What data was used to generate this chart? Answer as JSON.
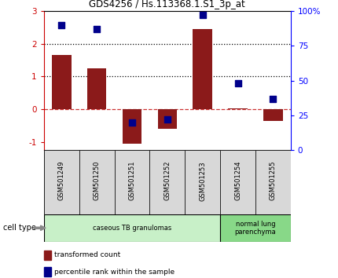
{
  "title": "GDS4256 / Hs.113368.1.S1_3p_at",
  "samples": [
    "GSM501249",
    "GSM501250",
    "GSM501251",
    "GSM501252",
    "GSM501253",
    "GSM501254",
    "GSM501255"
  ],
  "transformed_count": [
    1.65,
    1.25,
    -1.05,
    -0.6,
    2.45,
    0.02,
    -0.35
  ],
  "percentile_rank": [
    90,
    87,
    20,
    22,
    97,
    48,
    37
  ],
  "bar_color": "#8B1A1A",
  "dot_color": "#00008B",
  "left_ylim": [
    -1.25,
    3.0
  ],
  "left_yticks": [
    -1,
    0,
    1,
    2,
    3
  ],
  "right_ylim": [
    0,
    100
  ],
  "right_yticks": [
    0,
    25,
    50,
    75,
    100
  ],
  "right_yticklabels": [
    "0",
    "25",
    "50",
    "75",
    "100%"
  ],
  "hlines": [
    0,
    1,
    2
  ],
  "hline_styles": [
    "--",
    ":",
    ":"
  ],
  "hline_colors": [
    "#CC3333",
    "black",
    "black"
  ],
  "cell_type_groups": [
    {
      "label": "caseous TB granulomas",
      "start": 0,
      "end": 5,
      "color": "#c8f0c8"
    },
    {
      "label": "normal lung\nparenchyma",
      "start": 5,
      "end": 7,
      "color": "#88d888"
    }
  ],
  "cell_type_label": "cell type",
  "legend_items": [
    {
      "color": "#8B1A1A",
      "label": "transformed count"
    },
    {
      "color": "#00008B",
      "label": "percentile rank within the sample"
    }
  ],
  "bar_width": 0.55,
  "dot_size": 30,
  "fig_width": 4.3,
  "fig_height": 3.54,
  "dpi": 100
}
